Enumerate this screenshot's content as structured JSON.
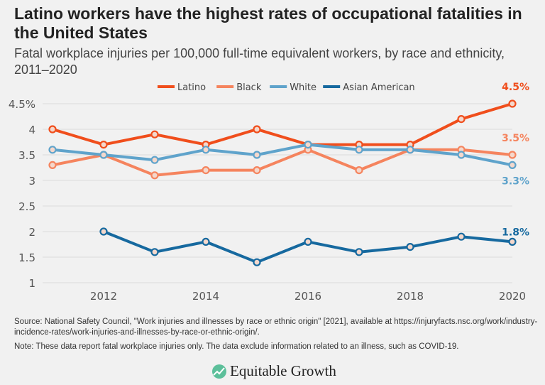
{
  "title": "Latino workers have the highest rates of occupational fatalities in the United States",
  "subtitle": "Fatal workplace injuries per 100,000 full-time equivalent workers, by race and ethnicity, 2011–2020",
  "source": "Source: National Safety Council, \"Work injuries and illnesses by race or ethnic origin\" [2021], available at https://injuryfacts.nsc.org/work/industry-incidence-rates/work-injuries-and-illnesses-by-race-or-ethnic-origin/.",
  "note": "Note: These data report fatal workplace injuries only. The data exclude information related to an illness, such as COVID-19.",
  "logo": "Equitable Growth",
  "chart_data": {
    "type": "line",
    "x": [
      2011,
      2012,
      2013,
      2014,
      2015,
      2016,
      2017,
      2018,
      2019,
      2020
    ],
    "xticks": [
      "2012",
      "2014",
      "2016",
      "2018",
      "2020"
    ],
    "yticks": [
      "1",
      "1.5",
      "2",
      "2.5",
      "3",
      "3.5",
      "4",
      "4.5%"
    ],
    "ylim": [
      1,
      4.5
    ],
    "xlim": [
      2011,
      2020
    ],
    "grid": "horizontal",
    "legend": "top",
    "series": [
      {
        "name": "Latino",
        "color": "#f04e1c",
        "values": [
          4.0,
          3.7,
          3.9,
          3.7,
          4.0,
          3.7,
          3.7,
          3.7,
          4.2,
          4.5
        ],
        "end_label": "4.5%"
      },
      {
        "name": "Black",
        "color": "#f5845e",
        "values": [
          3.3,
          3.5,
          3.1,
          3.2,
          3.2,
          3.6,
          3.2,
          3.6,
          3.6,
          3.5
        ],
        "end_label": "3.5%"
      },
      {
        "name": "White",
        "color": "#5fa3cb",
        "values": [
          3.6,
          3.5,
          3.4,
          3.6,
          3.5,
          3.7,
          3.6,
          3.6,
          3.5,
          3.3
        ],
        "end_label": "3.3%"
      },
      {
        "name": "Asian American",
        "color": "#16699f",
        "values": [
          null,
          2.0,
          1.6,
          1.8,
          1.4,
          1.8,
          1.6,
          1.7,
          1.9,
          1.8
        ],
        "end_label": "1.8%"
      }
    ]
  }
}
